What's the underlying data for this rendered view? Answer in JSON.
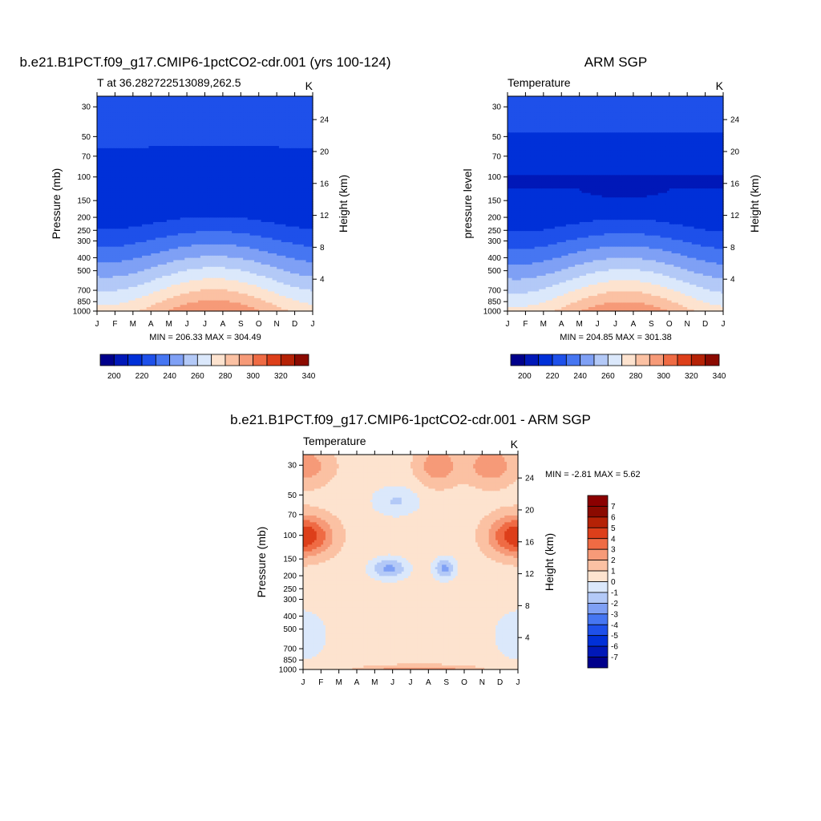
{
  "chart_data": [
    {
      "type": "heatmap",
      "id": "model",
      "title": "b.e21.B1PCT.f09_g17.CMIP6-1pctCO2-cdr.001 (yrs 100-124)",
      "left_string": "T at 36.282722513089,262.5",
      "right_string": "K",
      "ylabel": "Pressure (mb)",
      "ylabel_right": "Height (km)",
      "x_ticks": [
        "J",
        "F",
        "M",
        "A",
        "M",
        "J",
        "J",
        "A",
        "S",
        "O",
        "N",
        "D",
        "J"
      ],
      "pressure_ticks": [
        30,
        50,
        70,
        100,
        150,
        200,
        250,
        300,
        400,
        500,
        700,
        850,
        1000
      ],
      "height_ticks": [
        4,
        8,
        12,
        16,
        20,
        24
      ],
      "levels": [
        200,
        210,
        220,
        230,
        240,
        250,
        260,
        270,
        280,
        290,
        300,
        310,
        320,
        330,
        340
      ],
      "level_labels": [
        "200",
        "220",
        "240",
        "260",
        "280",
        "300",
        "320",
        "340"
      ],
      "min_max_label": "MIN = 206.33 MAX = 304.49",
      "min": 206.33,
      "max": 304.49
    },
    {
      "type": "heatmap",
      "id": "obs",
      "title": "ARM SGP",
      "left_string": "Temperature",
      "right_string": "K",
      "ylabel": "pressure level",
      "ylabel_right": "Height (km)",
      "x_ticks": [
        "J",
        "F",
        "M",
        "A",
        "M",
        "J",
        "J",
        "A",
        "S",
        "O",
        "N",
        "D",
        "J"
      ],
      "pressure_ticks": [
        30,
        50,
        70,
        100,
        150,
        200,
        250,
        300,
        400,
        500,
        700,
        850,
        1000
      ],
      "height_ticks": [
        4,
        8,
        12,
        16,
        20,
        24
      ],
      "levels": [
        200,
        210,
        220,
        230,
        240,
        250,
        260,
        270,
        280,
        290,
        300,
        310,
        320,
        330,
        340
      ],
      "level_labels": [
        "200",
        "220",
        "240",
        "260",
        "280",
        "300",
        "320",
        "340"
      ],
      "min_max_label": "MIN = 204.85 MAX = 301.38",
      "min": 204.85,
      "max": 301.38
    },
    {
      "type": "heatmap",
      "id": "diff",
      "title": "b.e21.B1PCT.f09_g17.CMIP6-1pctCO2-cdr.001 - ARM SGP",
      "left_string": "Temperature",
      "right_string": "K",
      "ylabel": "Pressure (mb)",
      "ylabel_right": "Height (km)",
      "x_ticks": [
        "J",
        "F",
        "M",
        "A",
        "M",
        "J",
        "J",
        "A",
        "S",
        "O",
        "N",
        "D",
        "J"
      ],
      "pressure_ticks": [
        30,
        50,
        70,
        100,
        150,
        200,
        250,
        300,
        400,
        500,
        700,
        850,
        1000
      ],
      "height_ticks": [
        4,
        8,
        12,
        16,
        20,
        24
      ],
      "levels": [
        -7,
        -6,
        -5,
        -4,
        -3,
        -2,
        -1,
        0,
        1,
        2,
        3,
        4,
        5,
        6,
        7
      ],
      "level_labels": [
        "7",
        "6",
        "5",
        "4",
        "3",
        "2",
        "1",
        "0",
        "-1",
        "-2",
        "-3",
        "-4",
        "-5",
        "-6",
        "-7"
      ],
      "min_max_label": "MIN =  -2.81 MAX =   5.62",
      "min": -2.81,
      "max": 5.62
    }
  ],
  "colors": {
    "temperature_palette": [
      "#00008b",
      "#0018b8",
      "#0030d8",
      "#1e50ea",
      "#4676f2",
      "#7fa0f5",
      "#b3c9f7",
      "#dbe8fb",
      "#fde3cf",
      "#fbc1a3",
      "#f69a78",
      "#ef6b44",
      "#dd3f1a",
      "#b52206",
      "#8b0a00"
    ],
    "diff_palette": [
      "#00008b",
      "#0018b8",
      "#0030d8",
      "#1e50ea",
      "#4676f2",
      "#7fa0f5",
      "#b3c9f7",
      "#dbe8fb",
      "#fde3cf",
      "#fbc1a3",
      "#f69a78",
      "#ef6b44",
      "#dd3f1a",
      "#b52206",
      "#8b0a00",
      "#8b0000"
    ]
  }
}
